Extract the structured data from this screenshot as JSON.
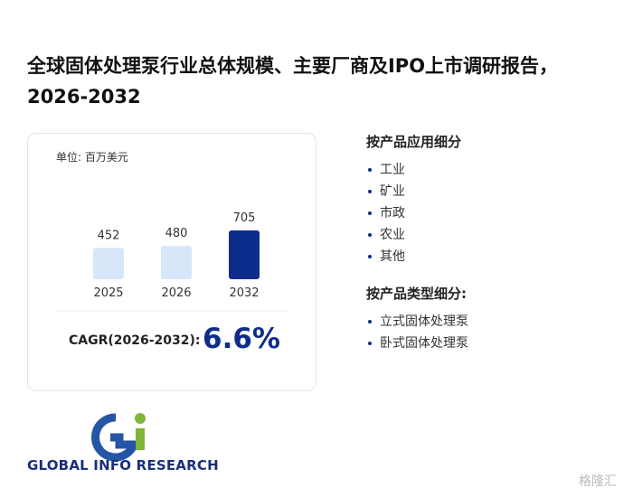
{
  "header": {
    "title": "全球固体处理泵行业总体规模、主要厂商及IPO上市调研报告，2026-2032"
  },
  "chart_data": {
    "type": "bar",
    "subtitle": "单位: 百万美元",
    "categories": [
      "2025",
      "2026",
      "2032"
    ],
    "values": [
      452,
      480,
      705
    ],
    "colors": [
      "#d6e7fa",
      "#d6e7fa",
      "#0d2d8c"
    ]
  },
  "cagr": {
    "label": "CAGR(2026-2032):",
    "value": "6.6%"
  },
  "segments": [
    {
      "title": "按产品应用细分",
      "items": [
        "工业",
        "矿业",
        "市政",
        "农业",
        "其他"
      ]
    },
    {
      "title": "按产品类型细分:",
      "items": [
        "立式固体处理泵",
        "卧式固体处理泵"
      ]
    }
  ],
  "logo": {
    "mark": "Gi",
    "name": "GLOBAL INFO RESEARCH"
  },
  "watermark": "格隆汇"
}
